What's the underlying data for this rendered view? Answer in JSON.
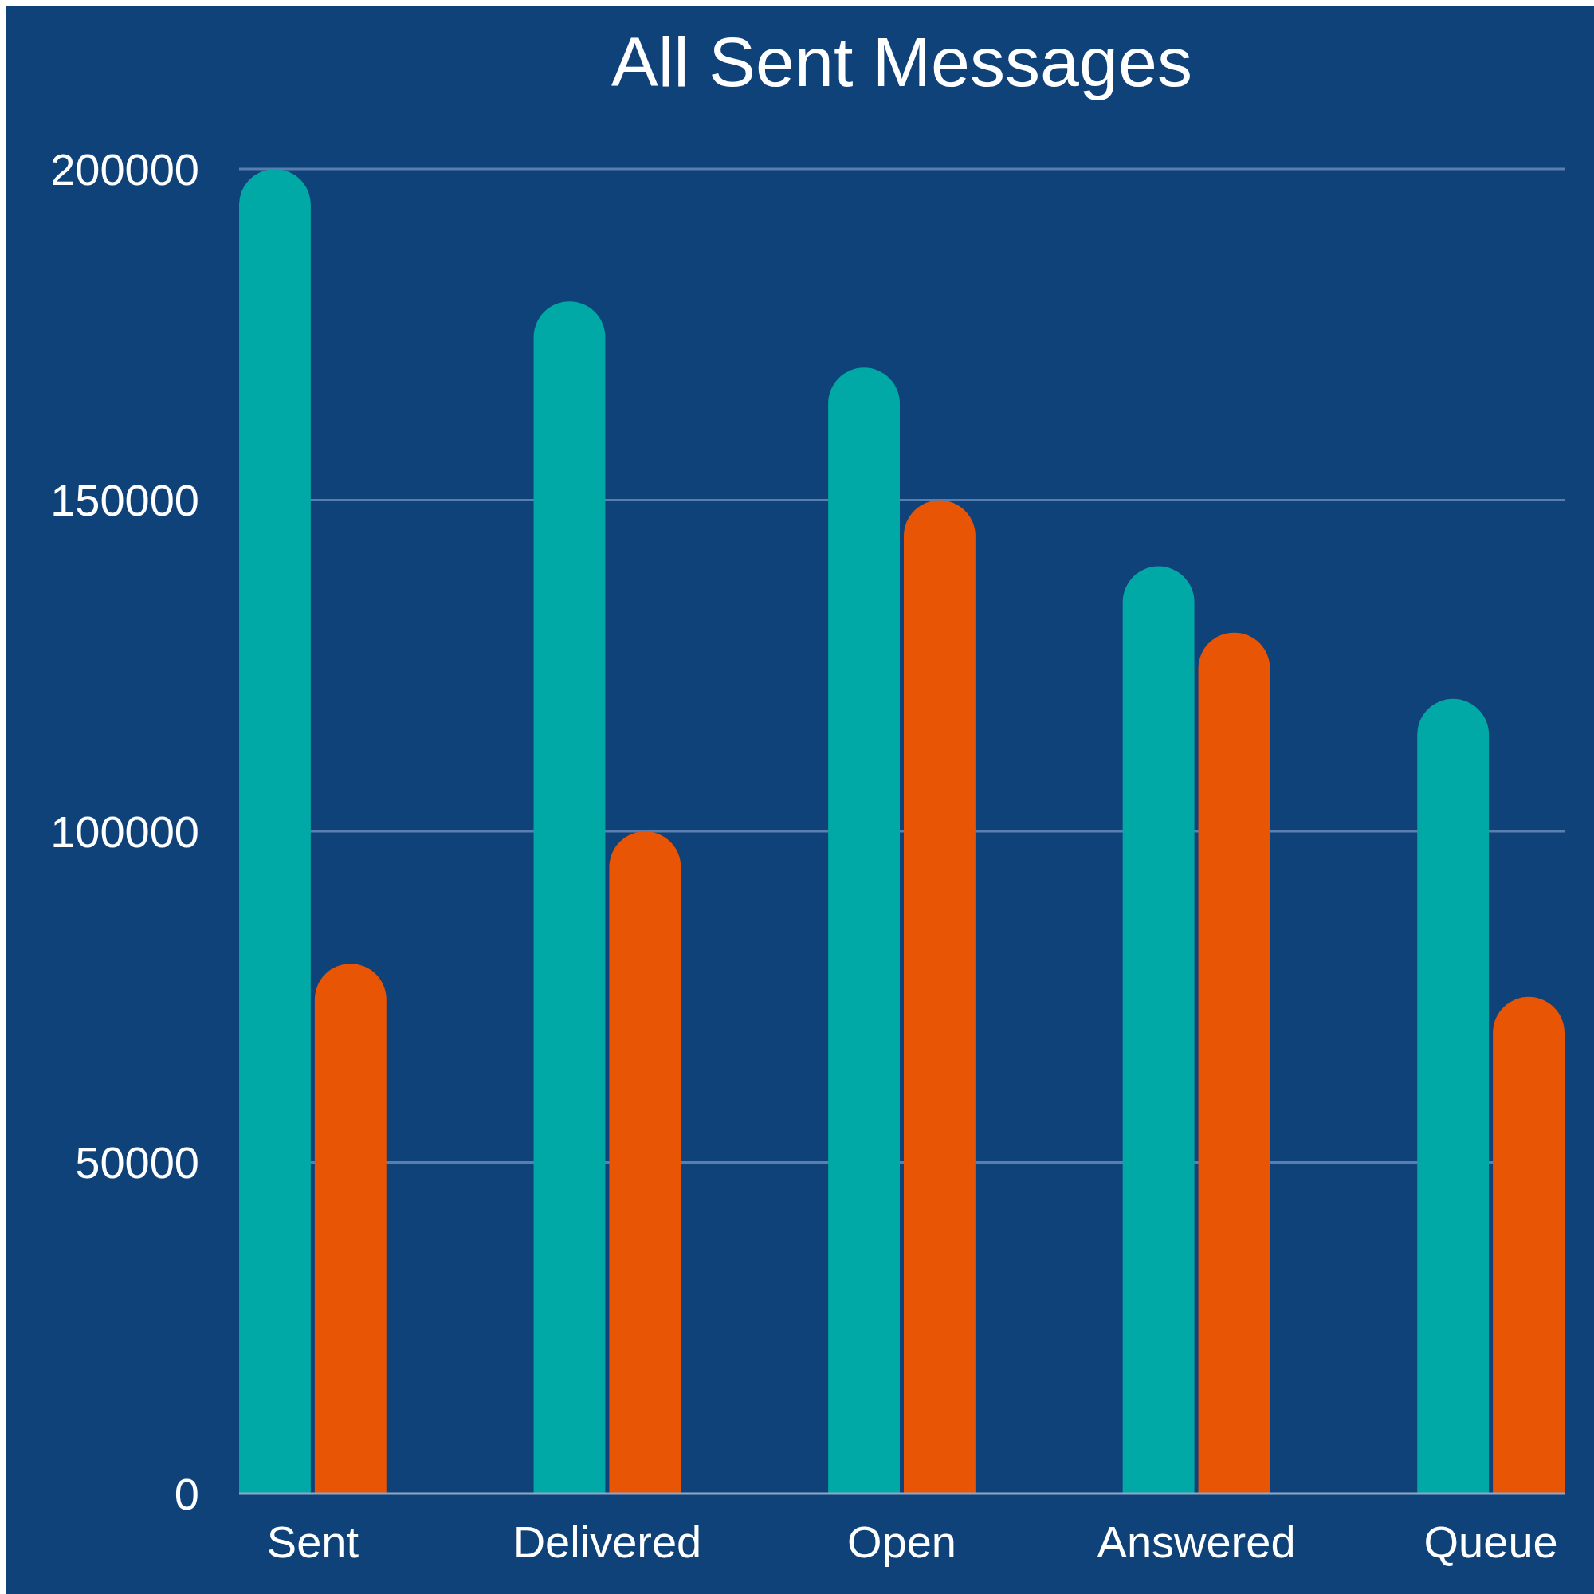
{
  "chart_data": {
    "type": "bar",
    "title": "All Sent Messages",
    "categories": [
      "Sent",
      "Delivered",
      "Open",
      "Answered",
      "Queue"
    ],
    "series": [
      {
        "color": "#00a8a6",
        "values": [
          200000,
          180000,
          170000,
          140000,
          120000
        ]
      },
      {
        "color": "#e85505",
        "values": [
          80000,
          100000,
          150000,
          130000,
          75000
        ]
      }
    ],
    "ylim": [
      0,
      200000
    ],
    "yticks": [
      0,
      50000,
      100000,
      150000,
      200000
    ],
    "grid": "y"
  }
}
